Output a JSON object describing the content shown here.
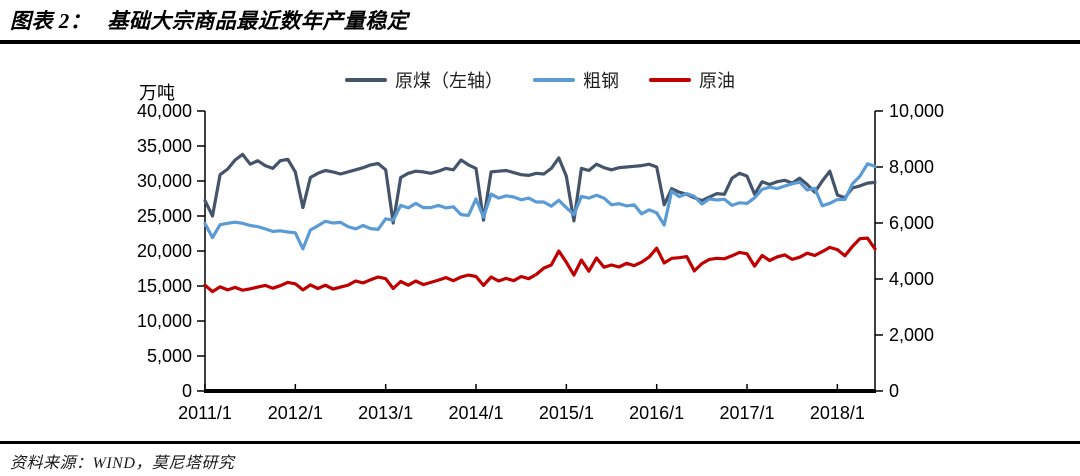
{
  "header": {
    "figure_label": "图表 2：",
    "title": "基础大宗商品最近数年产量稳定"
  },
  "footer": {
    "source": "资料来源：WIND，莫尼塔研究"
  },
  "chart_data": {
    "type": "line",
    "title": "基础大宗商品最近数年产量稳定",
    "grid": false,
    "legend_position": "top",
    "left_axis": {
      "unit": "万吨",
      "min": 0,
      "max": 40000,
      "step": 5000,
      "tick_labels": [
        "40,000",
        "35,000",
        "30,000",
        "25,000",
        "20,000",
        "15,000",
        "10,000",
        "5,000",
        "0"
      ]
    },
    "right_axis": {
      "min": 0,
      "max": 10000,
      "step": 2000,
      "tick_labels": [
        "10,000",
        "8,000",
        "6,000",
        "4,000",
        "2,000",
        "0"
      ]
    },
    "x_axis": {
      "tick_labels": [
        "2011/1",
        "2012/1",
        "2013/1",
        "2014/1",
        "2015/1",
        "2016/1",
        "2017/1",
        "2018/1"
      ],
      "tick_month_indices": [
        0,
        12,
        24,
        36,
        48,
        60,
        72,
        84
      ]
    },
    "x_months": [
      "2011/1",
      "2011/2",
      "2011/3",
      "2011/4",
      "2011/5",
      "2011/6",
      "2011/7",
      "2011/8",
      "2011/9",
      "2011/10",
      "2011/11",
      "2011/12",
      "2012/1",
      "2012/2",
      "2012/3",
      "2012/4",
      "2012/5",
      "2012/6",
      "2012/7",
      "2012/8",
      "2012/9",
      "2012/10",
      "2012/11",
      "2012/12",
      "2013/1",
      "2013/2",
      "2013/3",
      "2013/4",
      "2013/5",
      "2013/6",
      "2013/7",
      "2013/8",
      "2013/9",
      "2013/10",
      "2013/11",
      "2013/12",
      "2014/1",
      "2014/2",
      "2014/3",
      "2014/4",
      "2014/5",
      "2014/6",
      "2014/7",
      "2014/8",
      "2014/9",
      "2014/10",
      "2014/11",
      "2014/12",
      "2015/1",
      "2015/2",
      "2015/3",
      "2015/4",
      "2015/5",
      "2015/6",
      "2015/7",
      "2015/8",
      "2015/9",
      "2015/10",
      "2015/11",
      "2015/12",
      "2016/1",
      "2016/2",
      "2016/3",
      "2016/4",
      "2016/5",
      "2016/6",
      "2016/7",
      "2016/8",
      "2016/9",
      "2016/10",
      "2016/11",
      "2016/12",
      "2017/1",
      "2017/2",
      "2017/3",
      "2017/4",
      "2017/5",
      "2017/6",
      "2017/7",
      "2017/8",
      "2017/9",
      "2017/10",
      "2017/11",
      "2017/12",
      "2018/1",
      "2018/2",
      "2018/3",
      "2018/4",
      "2018/5",
      "2018/6"
    ],
    "series": [
      {
        "id": "raw-coal",
        "name": "原煤（左轴）",
        "axis": "left",
        "color": "#44546A",
        "values": [
          27200,
          25000,
          30900,
          31700,
          33000,
          33800,
          32400,
          32900,
          32200,
          31800,
          32900,
          33100,
          31300,
          26200,
          30500,
          31100,
          31500,
          31300,
          31000,
          31300,
          31600,
          31900,
          32300,
          32500,
          31600,
          24000,
          30500,
          31100,
          31400,
          31300,
          31100,
          31400,
          31800,
          31600,
          33000,
          32300,
          31800,
          24400,
          31300,
          31400,
          31500,
          31200,
          30900,
          30800,
          31100,
          31000,
          31800,
          33300,
          30700,
          24300,
          31800,
          31500,
          32400,
          31900,
          31600,
          31900,
          32000,
          32100,
          32200,
          32400,
          32000,
          26600,
          28900,
          28400,
          28100,
          27600,
          27200,
          27700,
          28200,
          28100,
          30400,
          31100,
          30700,
          28100,
          29900,
          29500,
          29900,
          30100,
          29700,
          30400,
          29500,
          28400,
          30000,
          31400,
          28000,
          27600,
          29000,
          29300,
          29700,
          29800
        ]
      },
      {
        "id": "crude-steel",
        "name": "粗钢",
        "axis": "right",
        "color": "#5B9BD5",
        "values": [
          5980,
          5480,
          5940,
          5990,
          6030,
          5990,
          5910,
          5870,
          5790,
          5700,
          5720,
          5680,
          5650,
          5080,
          5750,
          5900,
          6060,
          6000,
          6020,
          5870,
          5790,
          5910,
          5800,
          5770,
          6150,
          6100,
          6630,
          6540,
          6700,
          6550,
          6550,
          6630,
          6540,
          6580,
          6300,
          6270,
          6860,
          6210,
          7030,
          6890,
          6970,
          6930,
          6830,
          6890,
          6750,
          6750,
          6600,
          6810,
          6550,
          6300,
          6950,
          6890,
          6990,
          6890,
          6650,
          6690,
          6610,
          6650,
          6330,
          6470,
          6360,
          5930,
          7140,
          6940,
          7050,
          6950,
          6680,
          6860,
          6820,
          6850,
          6630,
          6720,
          6700,
          6900,
          7200,
          7280,
          7230,
          7320,
          7400,
          7460,
          7180,
          7240,
          6615,
          6704,
          6840,
          6840,
          7398,
          7670,
          8113,
          8020
        ]
      },
      {
        "id": "crude-oil",
        "name": "原油",
        "axis": "right",
        "color": "#C00000",
        "values": [
          3780,
          3550,
          3720,
          3610,
          3700,
          3600,
          3650,
          3710,
          3770,
          3670,
          3760,
          3880,
          3830,
          3610,
          3790,
          3660,
          3780,
          3640,
          3710,
          3780,
          3930,
          3860,
          3970,
          4070,
          4010,
          3660,
          3910,
          3780,
          3930,
          3800,
          3880,
          3960,
          4050,
          3940,
          4070,
          4140,
          4090,
          3770,
          4070,
          3930,
          4020,
          3940,
          4090,
          4010,
          4160,
          4390,
          4500,
          5000,
          4600,
          4140,
          4680,
          4280,
          4750,
          4420,
          4500,
          4430,
          4560,
          4480,
          4600,
          4790,
          5100,
          4570,
          4740,
          4760,
          4800,
          4290,
          4550,
          4700,
          4740,
          4720,
          4830,
          4950,
          4900,
          4460,
          4840,
          4660,
          4790,
          4860,
          4700,
          4780,
          4920,
          4840,
          4980,
          5130,
          5050,
          4830,
          5160,
          5440,
          5460,
          5070
        ]
      }
    ]
  }
}
